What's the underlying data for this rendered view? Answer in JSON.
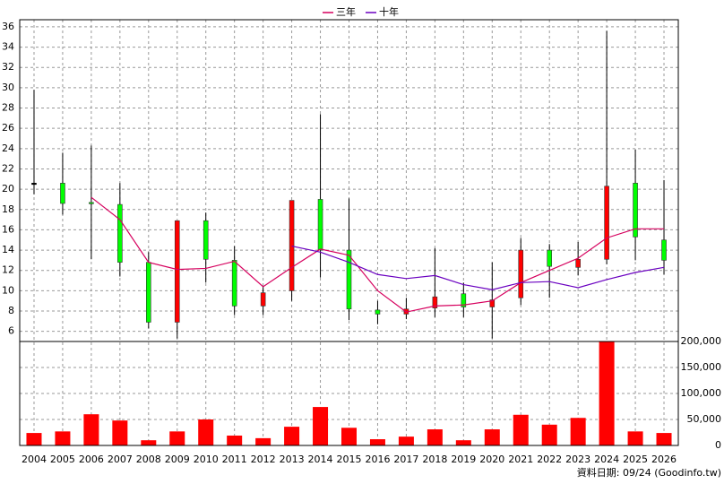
{
  "chart_data": [
    {
      "type": "candlestick",
      "categories": [
        "2004",
        "2005",
        "2006",
        "2007",
        "2008",
        "2009",
        "2010",
        "2011",
        "2012",
        "2013",
        "2014",
        "2015",
        "2016",
        "2017",
        "2018",
        "2019",
        "2020",
        "2021",
        "2022",
        "2023",
        "2024",
        "2025",
        "2026"
      ],
      "open": [
        20.6,
        20.6,
        18.7,
        18.5,
        12.8,
        6.9,
        16.9,
        13.0,
        8.5,
        10.0,
        19.0,
        14.0,
        8.1,
        7.7,
        8.3,
        9.7,
        8.4,
        9.3,
        14.0,
        12.3,
        13.1,
        20.6,
        15.0
      ],
      "high": [
        29.8,
        23.6,
        24.3,
        20.6,
        13.8,
        16.9,
        17.7,
        14.4,
        10.4,
        18.9,
        27.4,
        19.1,
        9.0,
        9.3,
        14.2,
        10.8,
        12.8,
        15.2,
        14.6,
        14.8,
        35.6,
        23.9,
        20.9
      ],
      "low": [
        19.5,
        17.5,
        13.1,
        11.4,
        6.3,
        5.3,
        10.8,
        7.6,
        7.6,
        9.0,
        11.3,
        7.1,
        6.7,
        7.2,
        7.4,
        7.4,
        5.3,
        8.6,
        9.3,
        11.5,
        12.6,
        13.0,
        11.6
      ],
      "close": [
        20.6,
        18.6,
        18.6,
        12.8,
        6.9,
        16.9,
        13.1,
        8.5,
        9.8,
        18.9,
        14.0,
        8.2,
        7.7,
        8.2,
        9.4,
        8.4,
        9.1,
        14.0,
        12.4,
        13.1,
        20.3,
        15.3,
        13.0
      ],
      "up_color": "#ff0000",
      "down_color": "#00ff00",
      "series": [
        {
          "name": "三年",
          "color": "#d6005e",
          "values": [
            null,
            null,
            19.2,
            17.0,
            12.8,
            12.1,
            12.2,
            12.9,
            10.4,
            12.3,
            14.1,
            13.5,
            10.0,
            7.9,
            8.5,
            8.6,
            9.0,
            10.8,
            12.0,
            13.2,
            15.2,
            16.1,
            16.1
          ]
        },
        {
          "name": "十年",
          "color": "#6a00c0",
          "values": [
            null,
            null,
            null,
            null,
            null,
            null,
            null,
            null,
            null,
            14.4,
            13.8,
            12.8,
            11.6,
            11.2,
            11.5,
            10.6,
            10.1,
            10.8,
            10.9,
            10.3,
            11.1,
            11.8,
            12.3
          ]
        }
      ],
      "ylim": [
        5,
        36.7
      ],
      "yticks": [
        6,
        8,
        10,
        12,
        14,
        16,
        18,
        20,
        22,
        24,
        26,
        28,
        30,
        32,
        34,
        36
      ],
      "grid": true
    },
    {
      "type": "bar",
      "color": "#ff0000",
      "values": [
        24000,
        27000,
        60000,
        48000,
        10000,
        27000,
        50000,
        19000,
        14000,
        36000,
        74000,
        34000,
        12000,
        17000,
        31000,
        10000,
        31000,
        59000,
        40000,
        53000,
        200000,
        27000,
        24000
      ],
      "ylim": [
        0,
        200000
      ],
      "yticks": [
        0,
        {
          "value": 50000,
          "label": "50,000"
        },
        {
          "value": 100000,
          "label": "100,000"
        },
        {
          "value": 150000,
          "label": "150,000"
        },
        {
          "value": 200000,
          "label": "200,000"
        }
      ],
      "grid": true
    }
  ],
  "footer": "資料日期: 09/24 (Goodinfo.tw)"
}
